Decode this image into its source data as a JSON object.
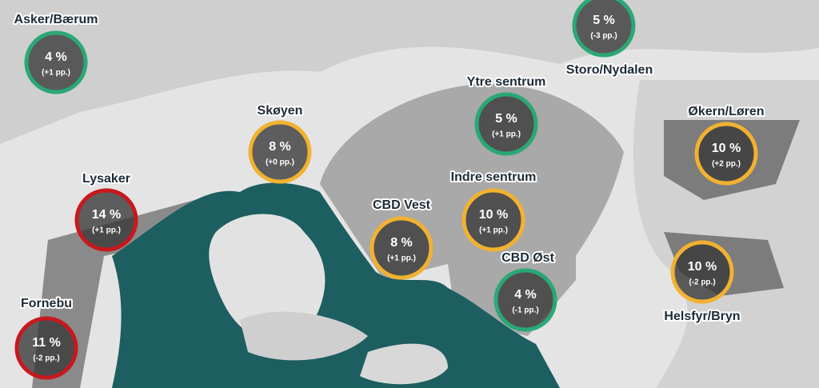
{
  "map": {
    "regions": [
      {
        "name": "Asker/Bærum",
        "value": "4 %",
        "change": "(+1 pp.)",
        "color": "#2aa876"
      },
      {
        "name": "Storo/Nydalen",
        "value": "5 %",
        "change": "(-3 pp.)",
        "color": "#2aa876"
      },
      {
        "name": "Ytre sentrum",
        "value": "5 %",
        "change": "(+1 pp.)",
        "color": "#2aa876"
      },
      {
        "name": "Skøyen",
        "value": "8 %",
        "change": "(+0 pp.)",
        "color": "#f2b230"
      },
      {
        "name": "Økern/Løren",
        "value": "10 %",
        "change": "(+2 pp.)",
        "color": "#f2b230"
      },
      {
        "name": "Lysaker",
        "value": "14 %",
        "change": "(+1 pp.)",
        "color": "#c8181e"
      },
      {
        "name": "Indre sentrum",
        "value": "10 %",
        "change": "(+1 pp.)",
        "color": "#f2b230"
      },
      {
        "name": "CBD Vest",
        "value": "8 %",
        "change": "(+1 pp.)",
        "color": "#f2b230"
      },
      {
        "name": "CBD Øst",
        "value": "4 %",
        "change": "(-1 pp.)",
        "color": "#2aa876"
      },
      {
        "name": "Helsfyr/Bryn",
        "value": "10 %",
        "change": "(-2 pp.)",
        "color": "#f2b230"
      },
      {
        "name": "Fornebu",
        "value": "11 %",
        "change": "(-2 pp.)",
        "color": "#c8181e"
      }
    ]
  }
}
